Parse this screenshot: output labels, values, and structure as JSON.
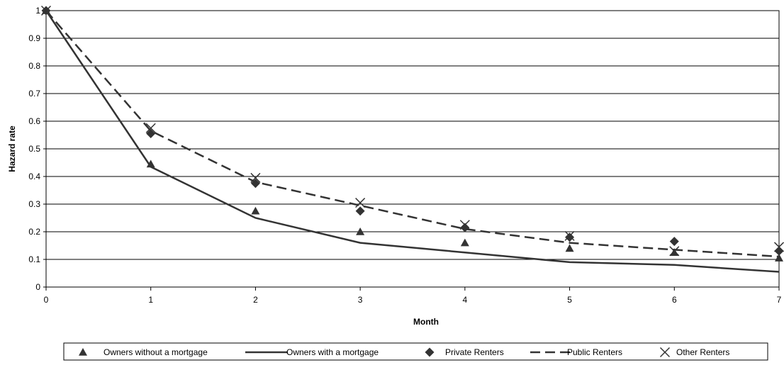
{
  "chart_data": {
    "type": "line",
    "title": "",
    "xlabel": "Month",
    "ylabel": "Hazard rate",
    "x": [
      0,
      1,
      2,
      3,
      4,
      5,
      6,
      7
    ],
    "xlim": [
      0,
      7
    ],
    "ylim": [
      0,
      1
    ],
    "x_ticks": [
      "0",
      "1",
      "2",
      "3",
      "4",
      "5",
      "6",
      "7"
    ],
    "y_ticks": [
      "0",
      "0.1",
      "0.2",
      "0.3",
      "0.4",
      "0.5",
      "0.6",
      "0.7",
      "0.8",
      "0.9",
      "1"
    ],
    "grid": "horizontal",
    "legend_position": "bottom",
    "series": [
      {
        "name": "Owners without a mortgage",
        "style": "triangle-marker",
        "values": [
          1.0,
          0.445,
          0.275,
          0.2,
          0.16,
          0.14,
          0.125,
          0.105
        ]
      },
      {
        "name": "Owners with a mortgage",
        "style": "solid-line",
        "values": [
          1.0,
          0.435,
          0.25,
          0.16,
          0.125,
          0.09,
          0.08,
          0.055
        ]
      },
      {
        "name": "Private Renters",
        "style": "diamond-marker",
        "values": [
          1.0,
          0.555,
          0.375,
          0.275,
          0.215,
          0.18,
          0.165,
          0.13
        ]
      },
      {
        "name": "Public Renters",
        "style": "dashed-line",
        "values": [
          1.0,
          0.565,
          0.38,
          0.295,
          0.21,
          0.16,
          0.135,
          0.11
        ]
      },
      {
        "name": "Other Renters",
        "style": "x-marker",
        "values": [
          1.0,
          0.575,
          0.395,
          0.305,
          0.225,
          0.185,
          0.13,
          0.145
        ]
      }
    ]
  }
}
